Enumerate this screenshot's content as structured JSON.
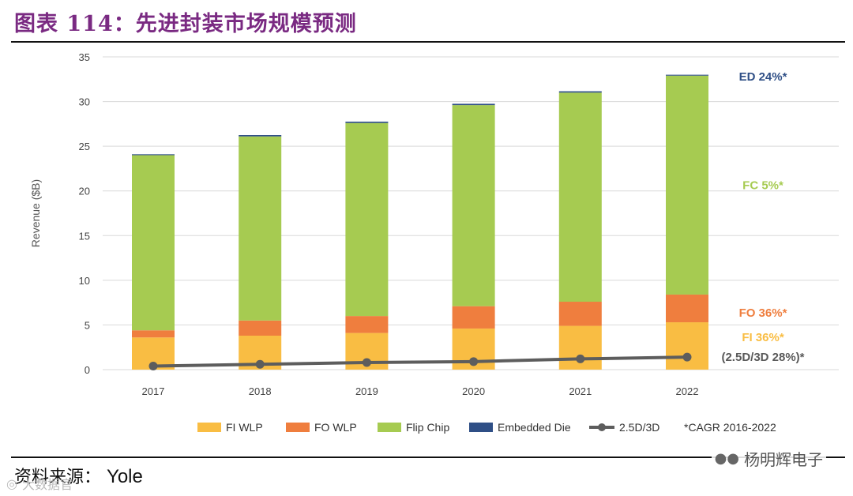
{
  "header": {
    "title": "图表 114：先进封装市场规模预测"
  },
  "source": {
    "label": "资料来源：",
    "value": "Yole"
  },
  "watermark": {
    "text": "杨明辉电子",
    "secondary": "大数据官"
  },
  "chart_data": {
    "type": "bar",
    "stacked": true,
    "title": "",
    "xlabel": "",
    "ylabel": "Revenue ($B)",
    "ylim": [
      0,
      35
    ],
    "yticks": [
      0,
      5,
      10,
      15,
      20,
      25,
      30,
      35
    ],
    "grid": true,
    "categories": [
      "2017",
      "2018",
      "2019",
      "2020",
      "2021",
      "2022"
    ],
    "series": [
      {
        "name": "FI WLP",
        "color": "#f9bd43",
        "values": [
          3.6,
          3.8,
          4.1,
          4.6,
          4.9,
          5.3
        ]
      },
      {
        "name": "FO WLP",
        "color": "#ef7e3e",
        "values": [
          0.8,
          1.7,
          1.9,
          2.5,
          2.7,
          3.1
        ]
      },
      {
        "name": "Flip Chip",
        "color": "#a6cb51",
        "values": [
          19.6,
          20.6,
          21.6,
          22.5,
          23.4,
          24.5
        ]
      },
      {
        "name": "Embedded Die",
        "color": "#2f4f86",
        "values": [
          0.1,
          0.15,
          0.15,
          0.15,
          0.15,
          0.1
        ]
      }
    ],
    "line_series": {
      "name": "2.5D/3D",
      "color": "#5d5d5d",
      "values": [
        0.4,
        0.6,
        0.8,
        0.9,
        1.2,
        1.4
      ]
    },
    "annotations": [
      {
        "text": "ED 24%*",
        "color": "#2f4f86"
      },
      {
        "text": "FC 5%*",
        "color": "#a6cb51"
      },
      {
        "text": "FO 36%*",
        "color": "#ef7e3e"
      },
      {
        "text": "FI 36%*",
        "color": "#f9bd43"
      },
      {
        "text": "(2.5D/3D 28%)*",
        "color": "#595959"
      }
    ],
    "footnote": "*CAGR 2016-2022",
    "legend_position": "bottom"
  }
}
